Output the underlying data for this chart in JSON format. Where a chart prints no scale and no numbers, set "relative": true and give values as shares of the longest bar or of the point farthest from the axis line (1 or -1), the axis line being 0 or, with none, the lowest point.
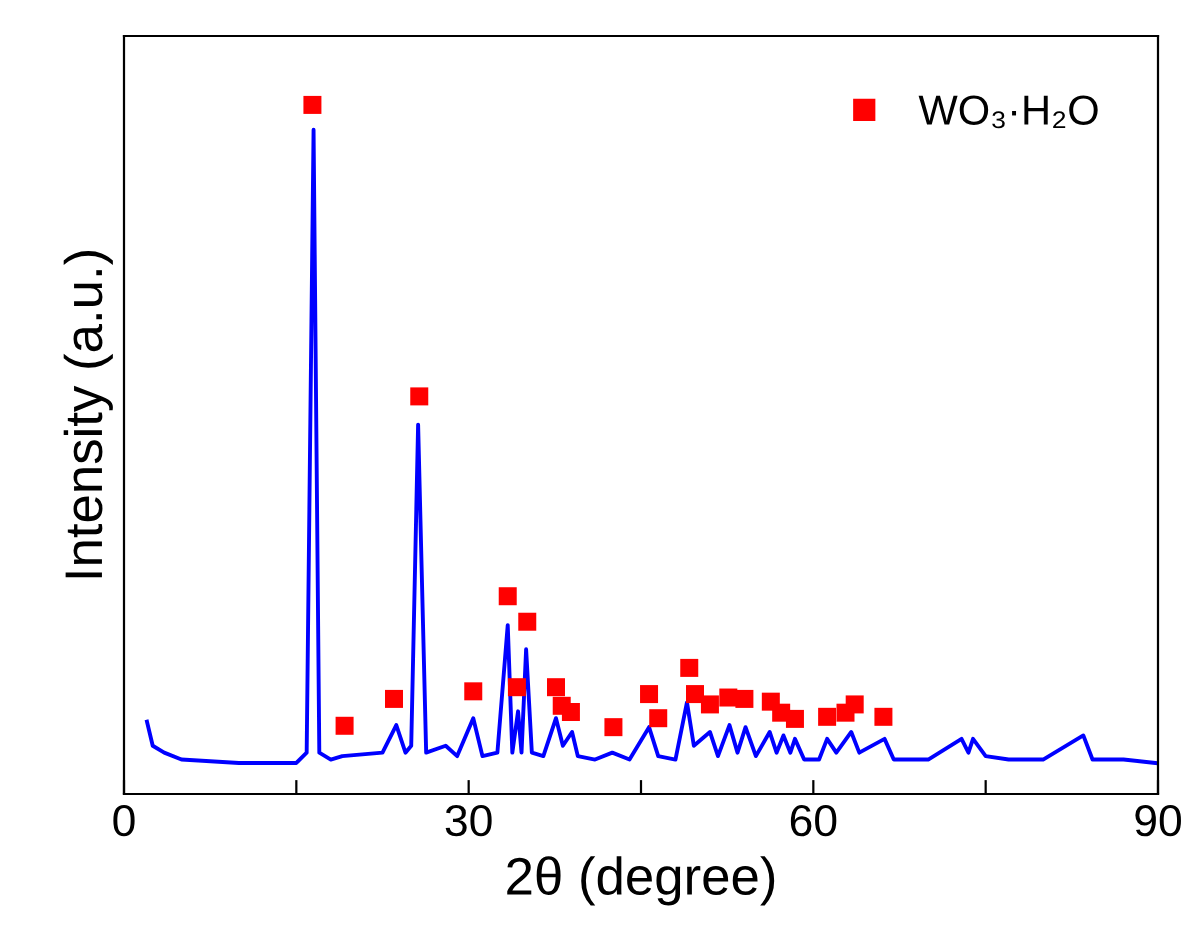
{
  "chart_data": {
    "type": "line",
    "relative": true,
    "xlabel": "2θ (degree)",
    "ylabel": "Intensity (a.u.)",
    "xlim": [
      0,
      90
    ],
    "xticks": [
      0,
      {
        "value": 15,
        "label": null
      },
      30,
      {
        "value": 45,
        "label": null
      },
      60,
      {
        "value": 75,
        "label": null
      },
      90
    ],
    "tick_labels": "x",
    "legend": "top right",
    "grid": false,
    "series": [
      {
        "color": "#0000ff",
        "marker": "none",
        "x": [
          2,
          2.5,
          3.5,
          5,
          10,
          15,
          15.9,
          16.5,
          17.0,
          18,
          19,
          22.5,
          23.7,
          24.5,
          25.0,
          25.6,
          26.3,
          28,
          29,
          30.4,
          31.2,
          32.5,
          33.4,
          33.8,
          34.3,
          34.6,
          35.0,
          35.5,
          36.5,
          37.6,
          38.2,
          39.0,
          39.5,
          41,
          42.5,
          44,
          45.7,
          46.5,
          48,
          49.0,
          49.6,
          51.0,
          51.7,
          52.7,
          53.4,
          54.1,
          55,
          56.2,
          56.8,
          57.4,
          58,
          58.4,
          59.2,
          60.5,
          61.2,
          62,
          63.3,
          64,
          66.2,
          67,
          70,
          72.9,
          73.5,
          73.9,
          75,
          77,
          80,
          83.5,
          84.3,
          87,
          89.8
        ],
        "values": [
          0.105,
          0.07,
          0.06,
          0.05,
          0.045,
          0.045,
          0.06,
          0.964,
          0.06,
          0.05,
          0.055,
          0.06,
          0.1,
          0.06,
          0.07,
          0.536,
          0.06,
          0.07,
          0.055,
          0.11,
          0.055,
          0.06,
          0.245,
          0.06,
          0.12,
          0.06,
          0.21,
          0.06,
          0.055,
          0.11,
          0.07,
          0.09,
          0.055,
          0.05,
          0.06,
          0.05,
          0.097,
          0.055,
          0.05,
          0.133,
          0.07,
          0.09,
          0.055,
          0.1,
          0.06,
          0.097,
          0.055,
          0.09,
          0.06,
          0.085,
          0.06,
          0.08,
          0.05,
          0.05,
          0.08,
          0.06,
          0.09,
          0.06,
          0.08,
          0.05,
          0.05,
          0.08,
          0.06,
          0.08,
          0.055,
          0.05,
          0.05,
          0.085,
          0.05,
          0.05,
          0.045
        ]
      },
      {
        "type": "scatter",
        "name": "WO₃·H₂O",
        "color": "#ff0000",
        "marker": "square",
        "x": [
          16.4,
          19.2,
          23.5,
          25.7,
          30.4,
          33.4,
          34.2,
          35.1,
          37.6,
          38.1,
          38.9,
          42.6,
          45.7,
          46.5,
          49.2,
          49.7,
          51.0,
          52.6,
          54.0,
          56.3,
          57.2,
          58.4,
          61.2,
          62.8,
          63.6,
          66.1
        ],
        "values": [
          1.0,
          0.099,
          0.138,
          0.577,
          0.149,
          0.287,
          0.155,
          0.25,
          0.155,
          0.128,
          0.119,
          0.097,
          0.145,
          0.11,
          0.183,
          0.145,
          0.13,
          0.14,
          0.138,
          0.134,
          0.118,
          0.109,
          0.112,
          0.118,
          0.13,
          0.112
        ]
      }
    ]
  }
}
